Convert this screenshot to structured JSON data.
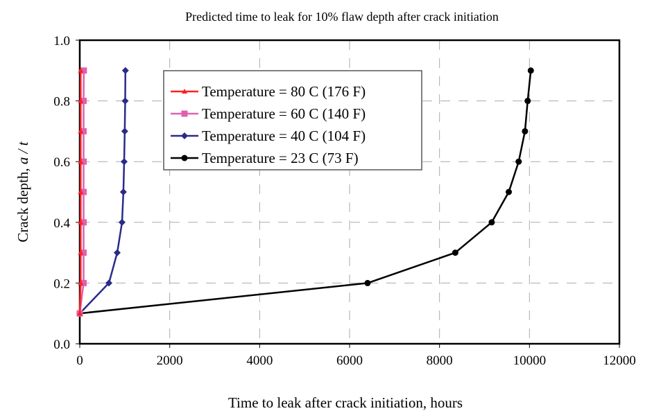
{
  "chart_data": {
    "type": "line",
    "title": "Predicted time to leak for 10% flaw depth after crack initiation",
    "xlabel": "Time to leak after crack initiation, hours",
    "ylabel_main": "Crack depth, ",
    "ylabel_italic": "a / t",
    "xlim": [
      0,
      12000
    ],
    "ylim": [
      0,
      1.0
    ],
    "xticks": [
      0,
      2000,
      4000,
      6000,
      8000,
      10000,
      12000
    ],
    "yticks": [
      "0.0",
      "0.2",
      "0.4",
      "0.6",
      "0.8",
      "1.0"
    ],
    "grid": true,
    "legend_position": "top-left",
    "series": [
      {
        "name": "Temperature = 80 C (176 F)",
        "color": "#ff2020",
        "marker": "triangle",
        "x": [
          0,
          20,
          20,
          20,
          20,
          20,
          20,
          20,
          20
        ],
        "y": [
          0.1,
          0.2,
          0.3,
          0.4,
          0.5,
          0.6,
          0.7,
          0.8,
          0.9
        ]
      },
      {
        "name": "Temperature = 60 C (140 F)",
        "color": "#e060b0",
        "marker": "square",
        "x": [
          0,
          85,
          85,
          85,
          85,
          85,
          85,
          85,
          90
        ],
        "y": [
          0.1,
          0.2,
          0.3,
          0.4,
          0.5,
          0.6,
          0.7,
          0.8,
          0.9
        ]
      },
      {
        "name": "Temperature = 40 C (104 F)",
        "color": "#2a2a8a",
        "marker": "diamond",
        "x": [
          0,
          648,
          833,
          940,
          970,
          987,
          1000,
          1010,
          1015
        ],
        "y": [
          0.1,
          0.2,
          0.3,
          0.4,
          0.5,
          0.6,
          0.7,
          0.8,
          0.9
        ]
      },
      {
        "name": "Temperature = 23 C (73 F)",
        "color": "#000000",
        "marker": "circle",
        "x": [
          0,
          6400,
          8350,
          9160,
          9540,
          9760,
          9900,
          9960,
          10030
        ],
        "y": [
          0.1,
          0.2,
          0.3,
          0.4,
          0.5,
          0.6,
          0.7,
          0.8,
          0.9
        ]
      }
    ]
  }
}
